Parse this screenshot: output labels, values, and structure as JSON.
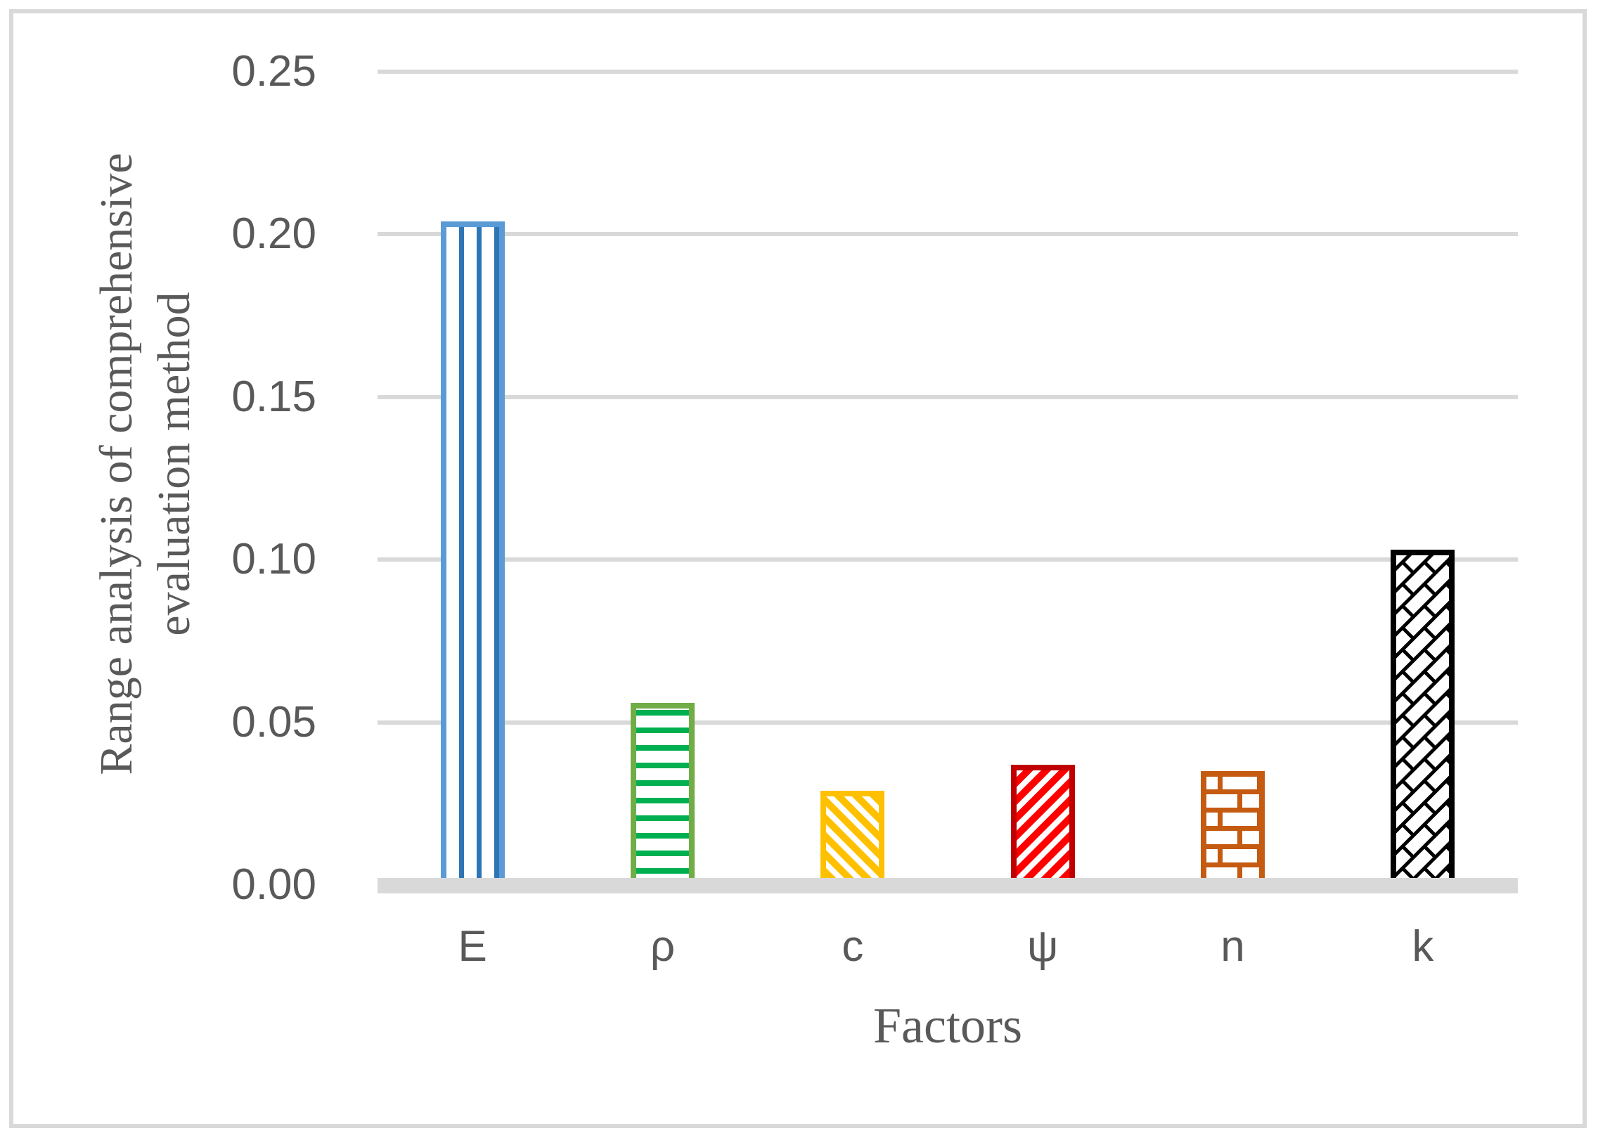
{
  "figure": {
    "background_color": "#FFFFFF",
    "border_color": "#D9D9D9",
    "text_color": "#595959",
    "gridline_color": "#D9D9D9",
    "axis_band_color": "#D9D9D9"
  },
  "chart_data": {
    "type": "bar",
    "title": "",
    "xlabel": "Factors",
    "ylabel": "Range analysis of comprehensive evaluation method",
    "ylabel_lines": [
      "Range analysis of comprehensive",
      "evaluation method"
    ],
    "categories": [
      "E",
      "ρ",
      "c",
      "ψ",
      "n",
      "k"
    ],
    "values": [
      0.204,
      0.056,
      0.029,
      0.037,
      0.035,
      0.103
    ],
    "ylim": [
      0,
      0.25
    ],
    "ytick_interval": 0.05,
    "yticks": [
      "0.00",
      "0.05",
      "0.10",
      "0.15",
      "0.20",
      "0.25"
    ],
    "grid": "horizontal",
    "legend": "none",
    "bar_styles": [
      {
        "category": "E",
        "pattern": "vertical-stripes",
        "stripe_color": "#2E75B6",
        "outline_color": "#5B9BD5",
        "fill_color": "#FFFFFF"
      },
      {
        "category": "ρ",
        "pattern": "horizontal-stripes",
        "stripe_color": "#00B050",
        "outline_color": "#70AD47",
        "fill_color": "#FFFFFF"
      },
      {
        "category": "c",
        "pattern": "diagonal-down-stripes",
        "stripe_color": "#FFC000",
        "outline_color": "#FFC000",
        "fill_color": "#FFFFFF"
      },
      {
        "category": "ψ",
        "pattern": "diagonal-up-stripes",
        "stripe_color": "#FF0000",
        "outline_color": "#C00000",
        "fill_color": "#FFFFFF"
      },
      {
        "category": "n",
        "pattern": "brick",
        "stripe_color": "#C55A11",
        "outline_color": "#C55A11",
        "fill_color": "#FFFFFF"
      },
      {
        "category": "k",
        "pattern": "diagonal-brick",
        "stripe_color": "#000000",
        "outline_color": "#000000",
        "fill_color": "#FFFFFF"
      }
    ]
  }
}
